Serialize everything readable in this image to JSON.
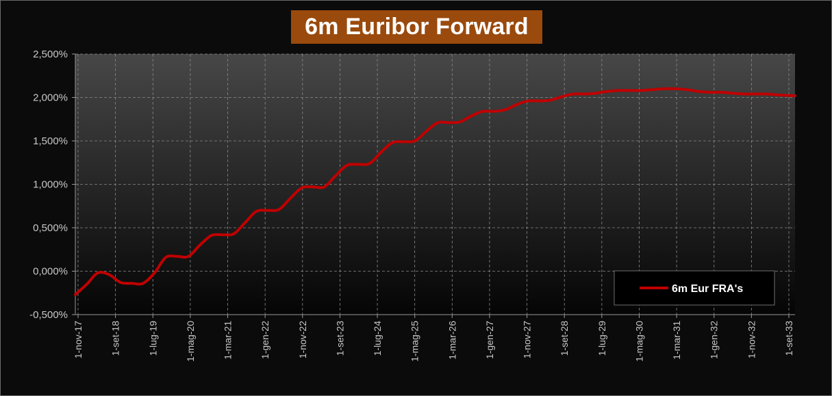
{
  "colors": {
    "background": "#0b0b0b",
    "title_bg": "#9a4a0d",
    "series": "#c00000",
    "grid": "#8a8a8a"
  },
  "chart_data": {
    "type": "line",
    "title": "6m Euribor Forward",
    "xlabel": "",
    "ylabel": "",
    "ylim": [
      -0.005,
      0.025
    ],
    "x_ticks": [
      "1-nov-17",
      "1-set-18",
      "1-lug-19",
      "1-mag-20",
      "1-mar-21",
      "1-gen-22",
      "1-nov-22",
      "1-set-23",
      "1-lug-24",
      "1-mag-25",
      "1-mar-26",
      "1-gen-27",
      "1-nov-27",
      "1-set-28",
      "1-lug-29",
      "1-mag-30",
      "1-mar-31",
      "1-gen-32",
      "1-nov-32",
      "1-set-33"
    ],
    "y_ticks": [
      "-0,500%",
      "0,000%",
      "0,500%",
      "1,000%",
      "1,500%",
      "2,000%",
      "2,500%"
    ],
    "grid": true,
    "legend_position": "bottom-right",
    "series": [
      {
        "name": "6m Eur FRA's",
        "points": [
          [
            "2017-11-01",
            -0.0027
          ],
          [
            "2018-02-01",
            -0.0015
          ],
          [
            "2018-05-01",
            -0.0002
          ],
          [
            "2018-08-01",
            -0.0004
          ],
          [
            "2018-11-01",
            -0.0013
          ],
          [
            "2019-02-01",
            -0.0014
          ],
          [
            "2019-05-01",
            -0.0014
          ],
          [
            "2019-08-01",
            -0.0002
          ],
          [
            "2019-11-01",
            0.0016
          ],
          [
            "2020-02-01",
            0.0017
          ],
          [
            "2020-05-01",
            0.0017
          ],
          [
            "2020-08-01",
            0.003
          ],
          [
            "2020-11-01",
            0.0041
          ],
          [
            "2021-02-01",
            0.0042
          ],
          [
            "2021-05-01",
            0.0043
          ],
          [
            "2021-08-01",
            0.0056
          ],
          [
            "2021-11-01",
            0.0069
          ],
          [
            "2022-02-01",
            0.007
          ],
          [
            "2022-05-01",
            0.0071
          ],
          [
            "2022-08-01",
            0.0084
          ],
          [
            "2022-11-01",
            0.0096
          ],
          [
            "2023-02-01",
            0.0097
          ],
          [
            "2023-05-01",
            0.0097
          ],
          [
            "2023-08-01",
            0.011
          ],
          [
            "2023-11-01",
            0.0122
          ],
          [
            "2024-02-01",
            0.0123
          ],
          [
            "2024-05-01",
            0.0124
          ],
          [
            "2024-08-01",
            0.0137
          ],
          [
            "2024-11-01",
            0.0148
          ],
          [
            "2025-02-01",
            0.0149
          ],
          [
            "2025-05-01",
            0.015
          ],
          [
            "2025-08-01",
            0.0161
          ],
          [
            "2025-11-01",
            0.0171
          ],
          [
            "2026-02-01",
            0.0171
          ],
          [
            "2026-05-01",
            0.0172
          ],
          [
            "2026-08-01",
            0.0179
          ],
          [
            "2026-11-01",
            0.0184
          ],
          [
            "2027-02-01",
            0.0184
          ],
          [
            "2027-05-01",
            0.0186
          ],
          [
            "2027-08-01",
            0.0192
          ],
          [
            "2027-11-01",
            0.0196
          ],
          [
            "2028-02-01",
            0.0196
          ],
          [
            "2028-05-01",
            0.0197
          ],
          [
            "2028-08-01",
            0.0201
          ],
          [
            "2028-11-01",
            0.0204
          ],
          [
            "2029-02-01",
            0.0204
          ],
          [
            "2029-05-01",
            0.0205
          ],
          [
            "2029-08-01",
            0.0207
          ],
          [
            "2029-11-01",
            0.0208
          ],
          [
            "2030-02-01",
            0.0208
          ],
          [
            "2030-05-01",
            0.0208
          ],
          [
            "2030-08-01",
            0.0209
          ],
          [
            "2030-11-01",
            0.021
          ],
          [
            "2031-02-01",
            0.021
          ],
          [
            "2031-05-01",
            0.0209
          ],
          [
            "2031-08-01",
            0.0207
          ],
          [
            "2031-11-01",
            0.0206
          ],
          [
            "2032-02-01",
            0.0206
          ],
          [
            "2032-05-01",
            0.0205
          ],
          [
            "2032-08-01",
            0.0204
          ],
          [
            "2032-11-01",
            0.0204
          ],
          [
            "2033-02-01",
            0.0204
          ],
          [
            "2033-05-01",
            0.0203
          ],
          [
            "2033-09-20",
            0.0202
          ]
        ]
      }
    ]
  }
}
